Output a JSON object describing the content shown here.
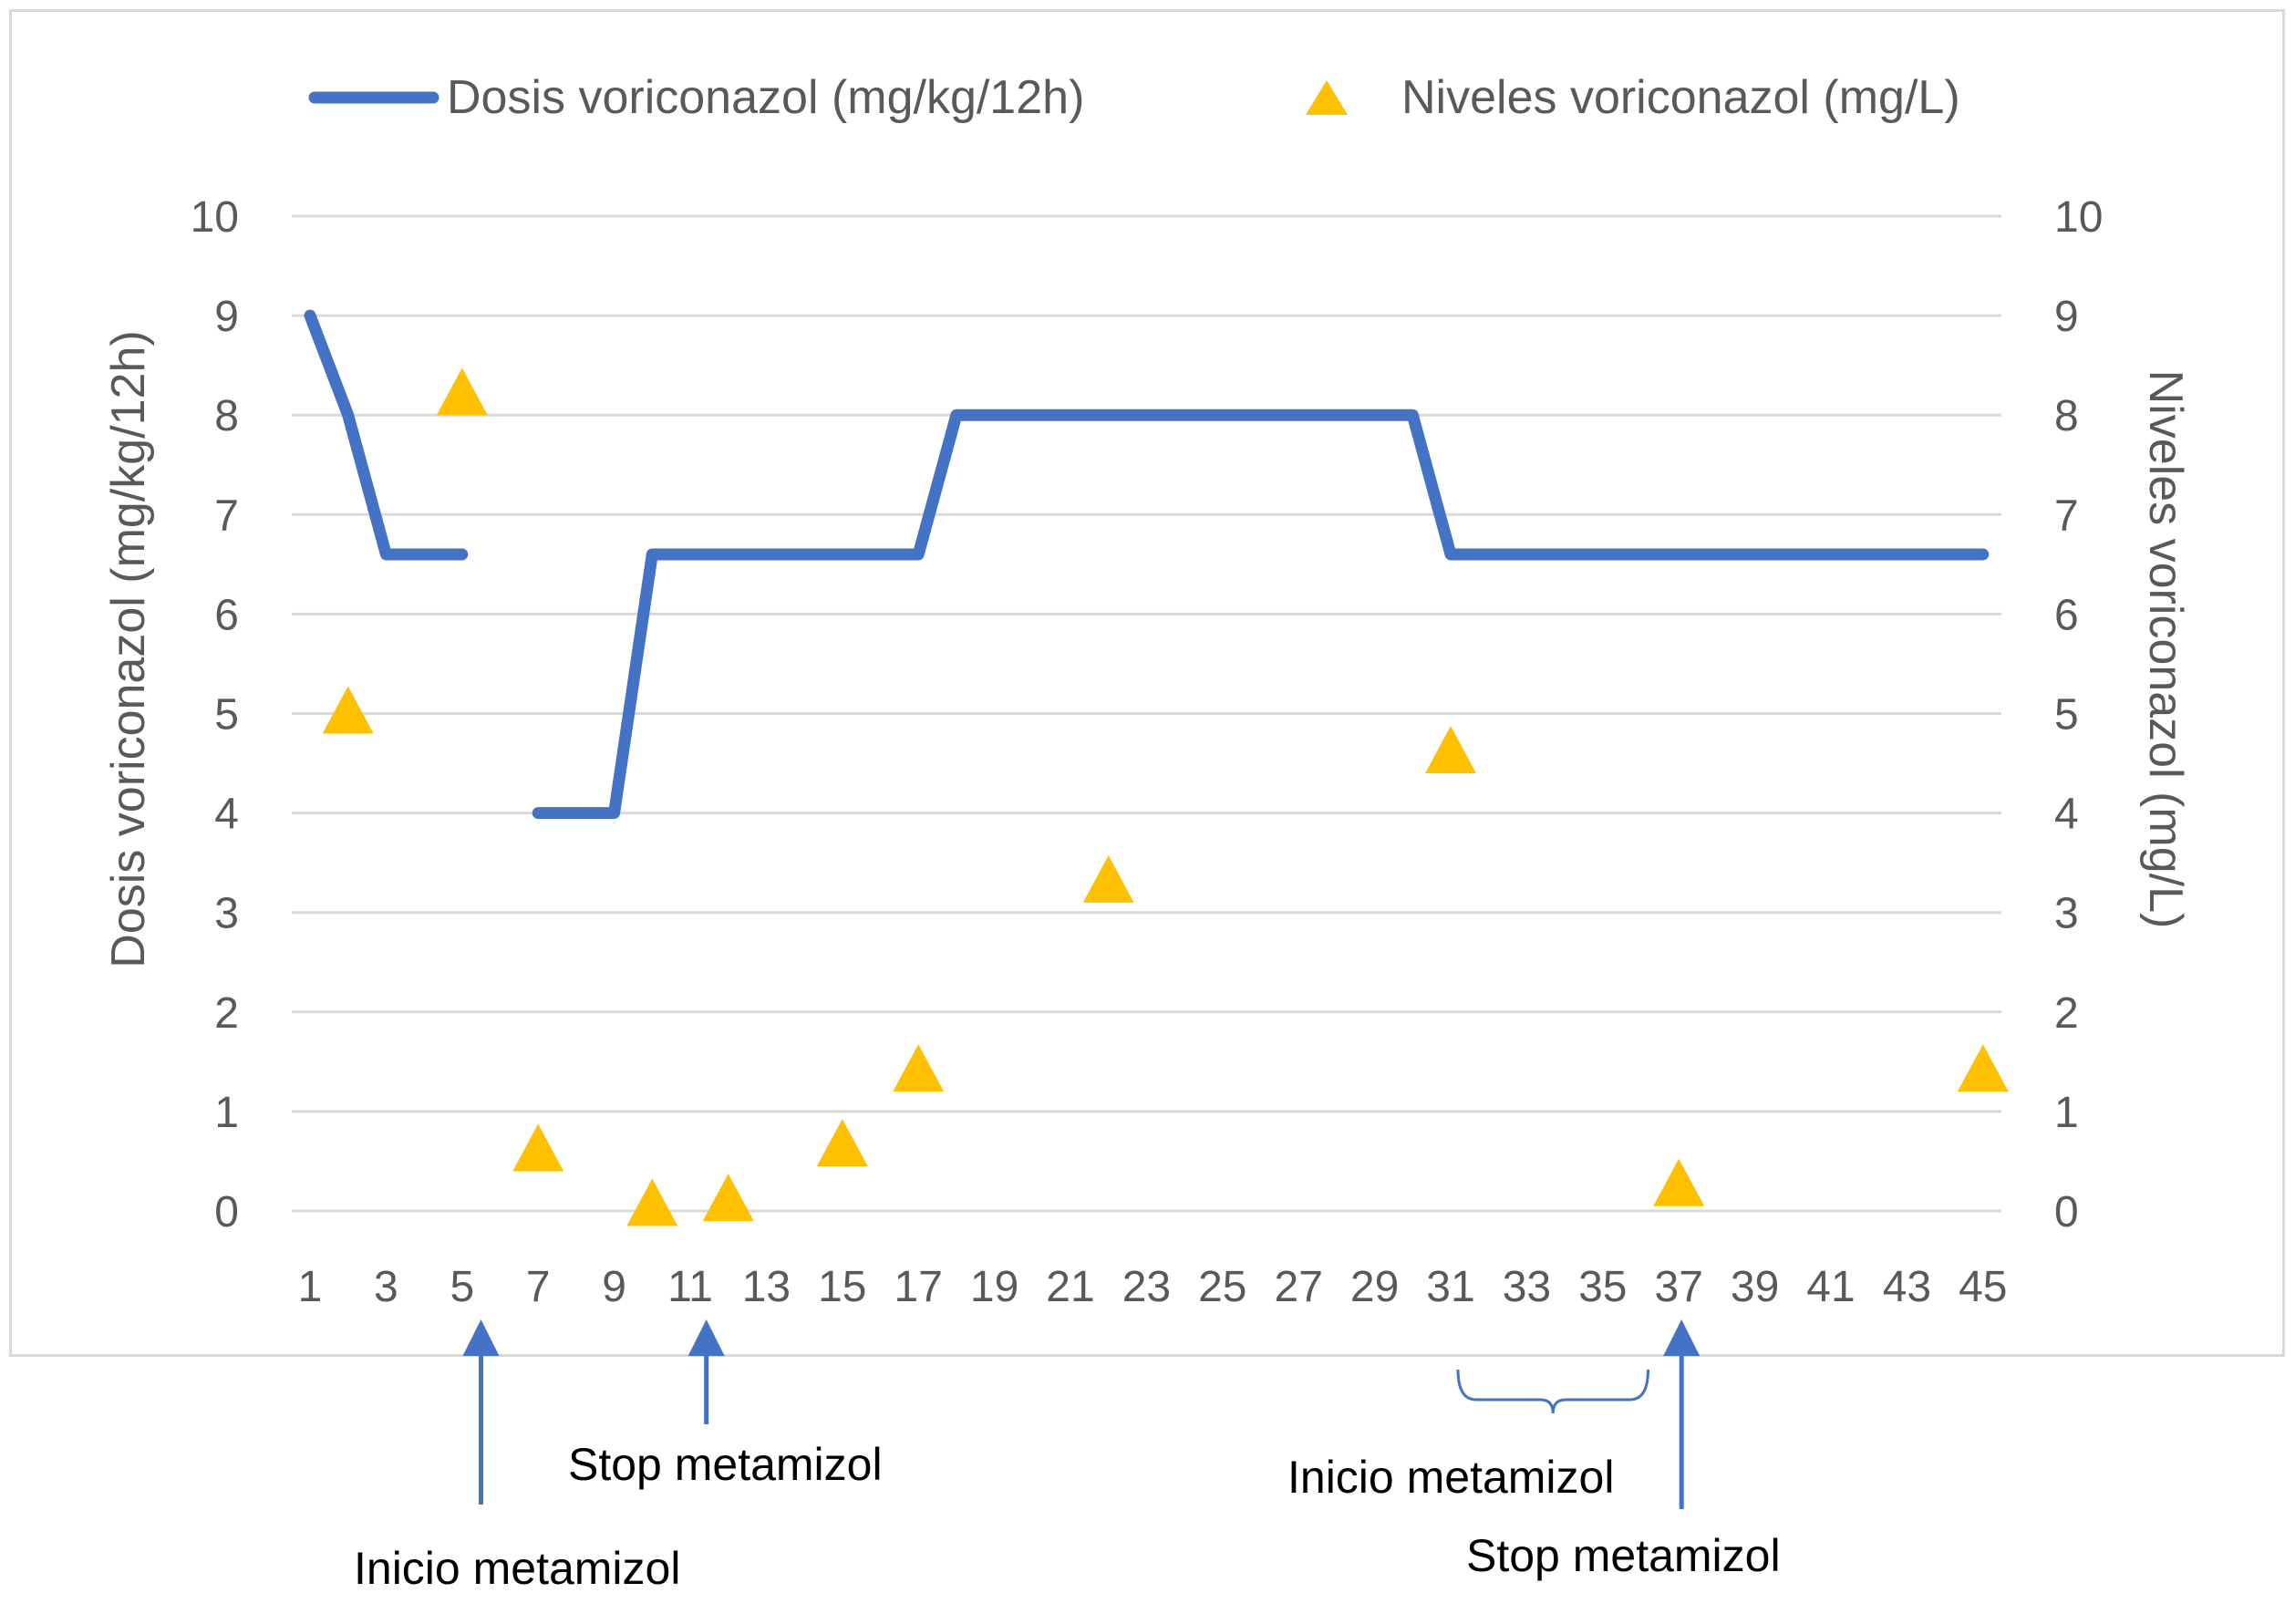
{
  "chart_data": {
    "type": "line",
    "x": [
      1,
      2,
      3,
      4,
      5,
      6,
      7,
      8,
      9,
      10,
      11,
      12,
      13,
      14,
      15,
      16,
      17,
      18,
      19,
      20,
      21,
      22,
      23,
      24,
      25,
      26,
      27,
      28,
      29,
      30,
      31,
      32,
      33,
      34,
      35,
      36,
      37,
      38,
      39,
      40,
      41,
      42,
      43,
      44,
      45
    ],
    "x_tick_labels": [
      "1",
      "3",
      "5",
      "7",
      "9",
      "11",
      "13",
      "15",
      "17",
      "19",
      "21",
      "23",
      "25",
      "27",
      "29",
      "31",
      "33",
      "35",
      "37",
      "39",
      "41",
      "43",
      "45"
    ],
    "ylim": [
      0,
      10
    ],
    "y_tick_labels": [
      "0",
      "1",
      "2",
      "3",
      "4",
      "5",
      "6",
      "7",
      "8",
      "9",
      "10"
    ],
    "y2lim": [
      0,
      10
    ],
    "y2_tick_labels": [
      "0",
      "1",
      "2",
      "3",
      "4",
      "5",
      "6",
      "7",
      "8",
      "9",
      "10"
    ],
    "ylabel": "Dosis voriconazol (mg/kg/12h)",
    "y2label": "Niveles voriconazol (mg/L)",
    "xlabel": "",
    "title": "",
    "grid": true,
    "legend_position": "top",
    "series": [
      {
        "name": "Dosis voriconazol (mg/kg/12h)",
        "type": "line",
        "axis": "left",
        "color": "#4472c4",
        "segments": [
          [
            [
              1,
              9
            ],
            [
              2,
              8
            ],
            [
              3,
              6.6
            ],
            [
              5,
              6.6
            ]
          ],
          [
            [
              7,
              4
            ],
            [
              9,
              4
            ],
            [
              10,
              6.6
            ],
            [
              17,
              6.6
            ],
            [
              18,
              8
            ],
            [
              30,
              8
            ],
            [
              31,
              6.6
            ],
            [
              45,
              6.6
            ]
          ]
        ]
      },
      {
        "name": "Niveles voriconazol (mg/L)",
        "type": "scatter",
        "marker": "triangle",
        "axis": "right",
        "color": "#ffc000",
        "points": [
          [
            2,
            5.0
          ],
          [
            5,
            8.2
          ],
          [
            7,
            0.6
          ],
          [
            10,
            0.05
          ],
          [
            12,
            0.1
          ],
          [
            15,
            0.65
          ],
          [
            17,
            1.4
          ],
          [
            22,
            3.3
          ],
          [
            31,
            4.6
          ],
          [
            37,
            0.25
          ],
          [
            45,
            1.4
          ]
        ]
      }
    ],
    "annotations": [
      {
        "text": "Inicio metamizol",
        "day": 6,
        "arrow": true,
        "bracket": false
      },
      {
        "text": "Stop metamizol",
        "day": 12,
        "arrow": true,
        "bracket": false
      },
      {
        "text": "Inicio metamizol",
        "day": 31,
        "arrow": false,
        "bracket": true,
        "day_end": 36
      },
      {
        "text": "Stop metamizol",
        "day": 37,
        "arrow": true,
        "bracket": false
      }
    ]
  }
}
